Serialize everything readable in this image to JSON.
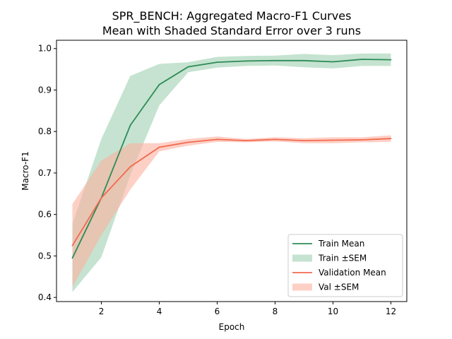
{
  "chart_data": {
    "type": "line",
    "title": "SPR_BENCH: Aggregated Macro-F1 Curves",
    "subtitle": "Mean with Shaded Standard Error over 3 runs",
    "xlabel": "Epoch",
    "ylabel": "Macro-F1",
    "xlim": [
      0.45,
      12.55
    ],
    "ylim": [
      0.39,
      1.02
    ],
    "x": [
      1,
      2,
      3,
      4,
      5,
      6,
      7,
      8,
      9,
      10,
      11,
      12
    ],
    "x_ticks": [
      "2",
      "4",
      "6",
      "8",
      "10",
      "12"
    ],
    "y_ticks": [
      "0.4",
      "0.5",
      "0.6",
      "0.7",
      "0.8",
      "0.9",
      "1.0"
    ],
    "grid": false,
    "legend_position": "lower-right",
    "series": [
      {
        "name": "Train Mean",
        "band_name": "Train ±SEM",
        "color": "#2e8b57",
        "band_color": "#9fd0b1",
        "values": [
          0.495,
          0.64,
          0.815,
          0.913,
          0.956,
          0.967,
          0.97,
          0.971,
          0.971,
          0.968,
          0.974,
          0.973
        ],
        "lower": [
          0.413,
          0.497,
          0.695,
          0.863,
          0.943,
          0.954,
          0.958,
          0.959,
          0.955,
          0.952,
          0.958,
          0.958
        ],
        "upper": [
          0.577,
          0.782,
          0.934,
          0.963,
          0.967,
          0.98,
          0.982,
          0.983,
          0.987,
          0.984,
          0.988,
          0.988
        ]
      },
      {
        "name": "Validation Mean",
        "band_name": "Val ±SEM",
        "color": "#f26a4f",
        "band_color": "#fbb1a0",
        "values": [
          0.525,
          0.64,
          0.715,
          0.762,
          0.774,
          0.781,
          0.778,
          0.781,
          0.778,
          0.779,
          0.78,
          0.783
        ],
        "lower": [
          0.425,
          0.55,
          0.66,
          0.752,
          0.766,
          0.775,
          0.774,
          0.776,
          0.772,
          0.772,
          0.774,
          0.775
        ],
        "upper": [
          0.625,
          0.73,
          0.772,
          0.772,
          0.782,
          0.788,
          0.782,
          0.786,
          0.784,
          0.786,
          0.786,
          0.791
        ]
      }
    ]
  }
}
